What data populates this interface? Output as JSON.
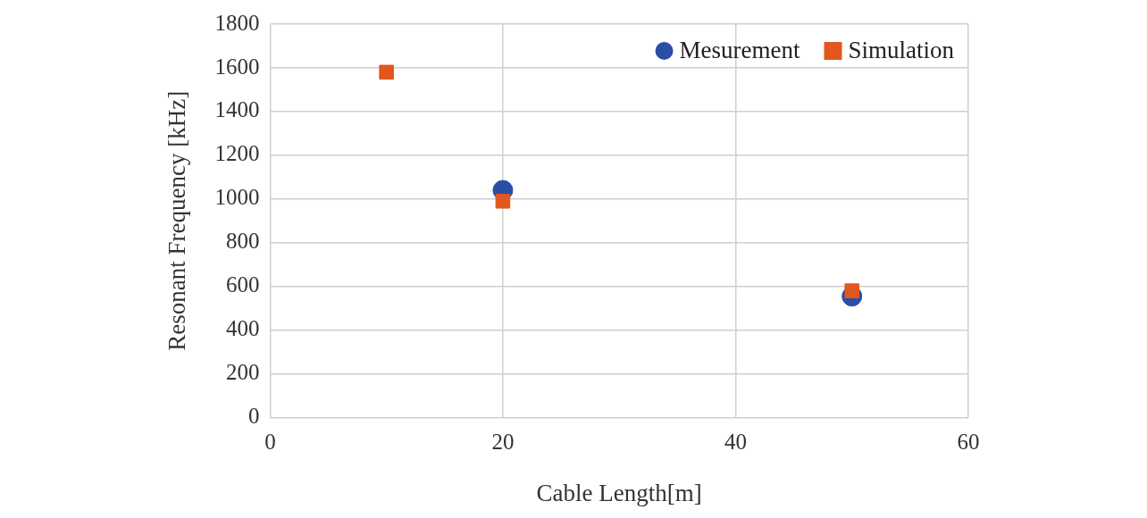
{
  "chart_data": {
    "type": "scatter",
    "x_label": "Cable Length[m]",
    "y_label": "Resonant Frequency [kHz]",
    "series": [
      {
        "name": "Mesurement",
        "color": "#2a4ea6",
        "marker": "circle",
        "x": [
          20,
          50
        ],
        "values": [
          1040,
          555
        ]
      },
      {
        "name": "Simulation",
        "color": "#e2561f",
        "marker": "square",
        "x": [
          10,
          20,
          50
        ],
        "values": [
          1580,
          990,
          580
        ]
      }
    ],
    "xlim": [
      0,
      60
    ],
    "xticks": [
      0,
      20,
      40,
      60
    ],
    "ylim": [
      0,
      1800
    ],
    "yticks": [
      0,
      200,
      400,
      600,
      800,
      1000,
      1200,
      1400,
      1600,
      1800
    ],
    "grid": true,
    "legend": "upper right"
  }
}
